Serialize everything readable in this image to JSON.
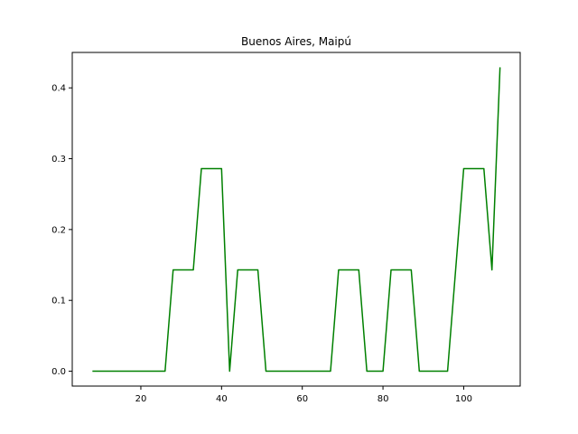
{
  "chart_data": {
    "type": "line",
    "title": "Buenos Aires, Maipú",
    "xlabel": "",
    "ylabel": "",
    "xlim": [
      3,
      114
    ],
    "ylim": [
      -0.021,
      0.45
    ],
    "xticks": [
      20,
      40,
      60,
      80,
      100
    ],
    "yticks": [
      0.0,
      0.1,
      0.2,
      0.3,
      0.4
    ],
    "ytick_labels": [
      "0.0",
      "0.1",
      "0.2",
      "0.3",
      "0.4"
    ],
    "grid": false,
    "legend": "none",
    "series": [
      {
        "color": "#008000",
        "x": [
          8,
          26,
          28,
          33,
          35,
          40,
          42,
          44,
          49,
          51,
          67,
          69,
          74,
          76,
          80,
          82,
          87,
          89,
          96,
          100,
          105,
          107,
          109
        ],
        "y": [
          0.0,
          0.0,
          0.143,
          0.143,
          0.286,
          0.286,
          0.0,
          0.143,
          0.143,
          0.0,
          0.0,
          0.143,
          0.143,
          0.0,
          0.0,
          0.143,
          0.143,
          0.0,
          0.0,
          0.286,
          0.286,
          0.143,
          0.429
        ]
      }
    ]
  }
}
